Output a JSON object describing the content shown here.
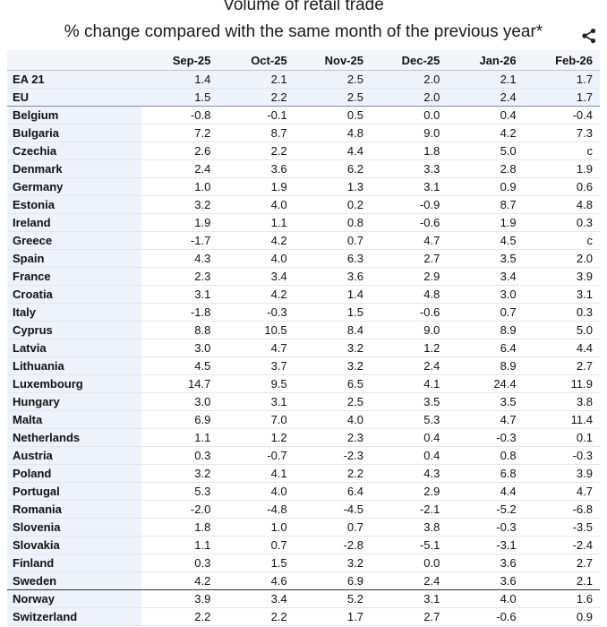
{
  "title": "Volume of retail trade",
  "subtitle": "% change compared with the same month of the previous year*",
  "share_icon": "share-icon",
  "columns": [
    "Sep-25",
    "Oct-25",
    "Nov-25",
    "Dec-25",
    "Jan-26",
    "Feb-26"
  ],
  "rows": [
    {
      "name": "EA 21",
      "values": [
        "1.4",
        "2.1",
        "2.5",
        "2.0",
        "2.1",
        "1.7"
      ]
    },
    {
      "name": "EU",
      "values": [
        "1.5",
        "2.2",
        "2.5",
        "2.0",
        "2.4",
        "1.7"
      ]
    },
    {
      "name": "Belgium",
      "values": [
        "-0.8",
        "-0.1",
        "0.5",
        "0.0",
        "0.4",
        "-0.4"
      ]
    },
    {
      "name": "Bulgaria",
      "values": [
        "7.2",
        "8.7",
        "4.8",
        "9.0",
        "4.2",
        "7.3"
      ]
    },
    {
      "name": "Czechia",
      "values": [
        "2.6",
        "2.2",
        "4.4",
        "1.8",
        "5.0",
        "c"
      ]
    },
    {
      "name": "Denmark",
      "values": [
        "2.4",
        "3.6",
        "6.2",
        "3.3",
        "2.8",
        "1.9"
      ]
    },
    {
      "name": "Germany",
      "values": [
        "1.0",
        "1.9",
        "1.3",
        "3.1",
        "0.9",
        "0.6"
      ]
    },
    {
      "name": "Estonia",
      "values": [
        "3.2",
        "4.0",
        "0.2",
        "-0.9",
        "8.7",
        "4.8"
      ]
    },
    {
      "name": "Ireland",
      "values": [
        "1.9",
        "1.1",
        "0.8",
        "-0.6",
        "1.9",
        "0.3"
      ]
    },
    {
      "name": "Greece",
      "values": [
        "-1.7",
        "4.2",
        "0.7",
        "4.7",
        "4.5",
        "c"
      ]
    },
    {
      "name": "Spain",
      "values": [
        "4.3",
        "4.0",
        "6.3",
        "2.7",
        "3.5",
        "2.0"
      ]
    },
    {
      "name": "France",
      "values": [
        "2.3",
        "3.4",
        "3.6",
        "2.9",
        "3.4",
        "3.9"
      ]
    },
    {
      "name": "Croatia",
      "values": [
        "3.1",
        "4.2",
        "1.4",
        "4.8",
        "3.0",
        "3.1"
      ]
    },
    {
      "name": "Italy",
      "values": [
        "-1.8",
        "-0.3",
        "1.5",
        "-0.6",
        "0.7",
        "0.3"
      ]
    },
    {
      "name": "Cyprus",
      "values": [
        "8.8",
        "10.5",
        "8.4",
        "9.0",
        "8.9",
        "5.0"
      ]
    },
    {
      "name": "Latvia",
      "values": [
        "3.0",
        "4.7",
        "3.2",
        "1.2",
        "6.4",
        "4.4"
      ]
    },
    {
      "name": "Lithuania",
      "values": [
        "4.5",
        "3.7",
        "3.2",
        "2.4",
        "8.9",
        "2.7"
      ]
    },
    {
      "name": "Luxembourg",
      "values": [
        "14.7",
        "9.5",
        "6.5",
        "4.1",
        "24.4",
        "11.9"
      ]
    },
    {
      "name": "Hungary",
      "values": [
        "3.0",
        "3.1",
        "2.5",
        "3.5",
        "3.5",
        "3.8"
      ]
    },
    {
      "name": "Malta",
      "values": [
        "6.9",
        "7.0",
        "4.0",
        "5.3",
        "4.7",
        "11.4"
      ]
    },
    {
      "name": "Netherlands",
      "values": [
        "1.1",
        "1.2",
        "2.3",
        "0.4",
        "-0.3",
        "0.1"
      ]
    },
    {
      "name": "Austria",
      "values": [
        "0.3",
        "-0.7",
        "-2.3",
        "0.4",
        "0.8",
        "-0.3"
      ]
    },
    {
      "name": "Poland",
      "values": [
        "3.2",
        "4.1",
        "2.2",
        "4.3",
        "6.8",
        "3.9"
      ]
    },
    {
      "name": "Portugal",
      "values": [
        "5.3",
        "4.0",
        "6.4",
        "2.9",
        "4.4",
        "4.7"
      ]
    },
    {
      "name": "Romania",
      "values": [
        "-2.0",
        "-4.8",
        "-4.5",
        "-2.1",
        "-5.2",
        "-6.8"
      ]
    },
    {
      "name": "Slovenia",
      "values": [
        "1.8",
        "1.0",
        "0.7",
        "3.8",
        "-0.3",
        "-3.5"
      ]
    },
    {
      "name": "Slovakia",
      "values": [
        "1.1",
        "0.7",
        "-2.8",
        "-5.1",
        "-3.1",
        "-2.4"
      ]
    },
    {
      "name": "Finland",
      "values": [
        "0.3",
        "1.5",
        "3.2",
        "0.0",
        "3.6",
        "2.7"
      ]
    },
    {
      "name": "Sweden",
      "values": [
        "4.2",
        "4.6",
        "6.9",
        "2.4",
        "3.6",
        "2.1"
      ]
    },
    {
      "name": "Norway",
      "values": [
        "3.9",
        "3.4",
        "5.2",
        "3.1",
        "4.0",
        "1.6"
      ]
    },
    {
      "name": "Switzerland",
      "values": [
        "2.2",
        "2.2",
        "1.7",
        "2.7",
        "-0.6",
        "0.9"
      ]
    }
  ]
}
